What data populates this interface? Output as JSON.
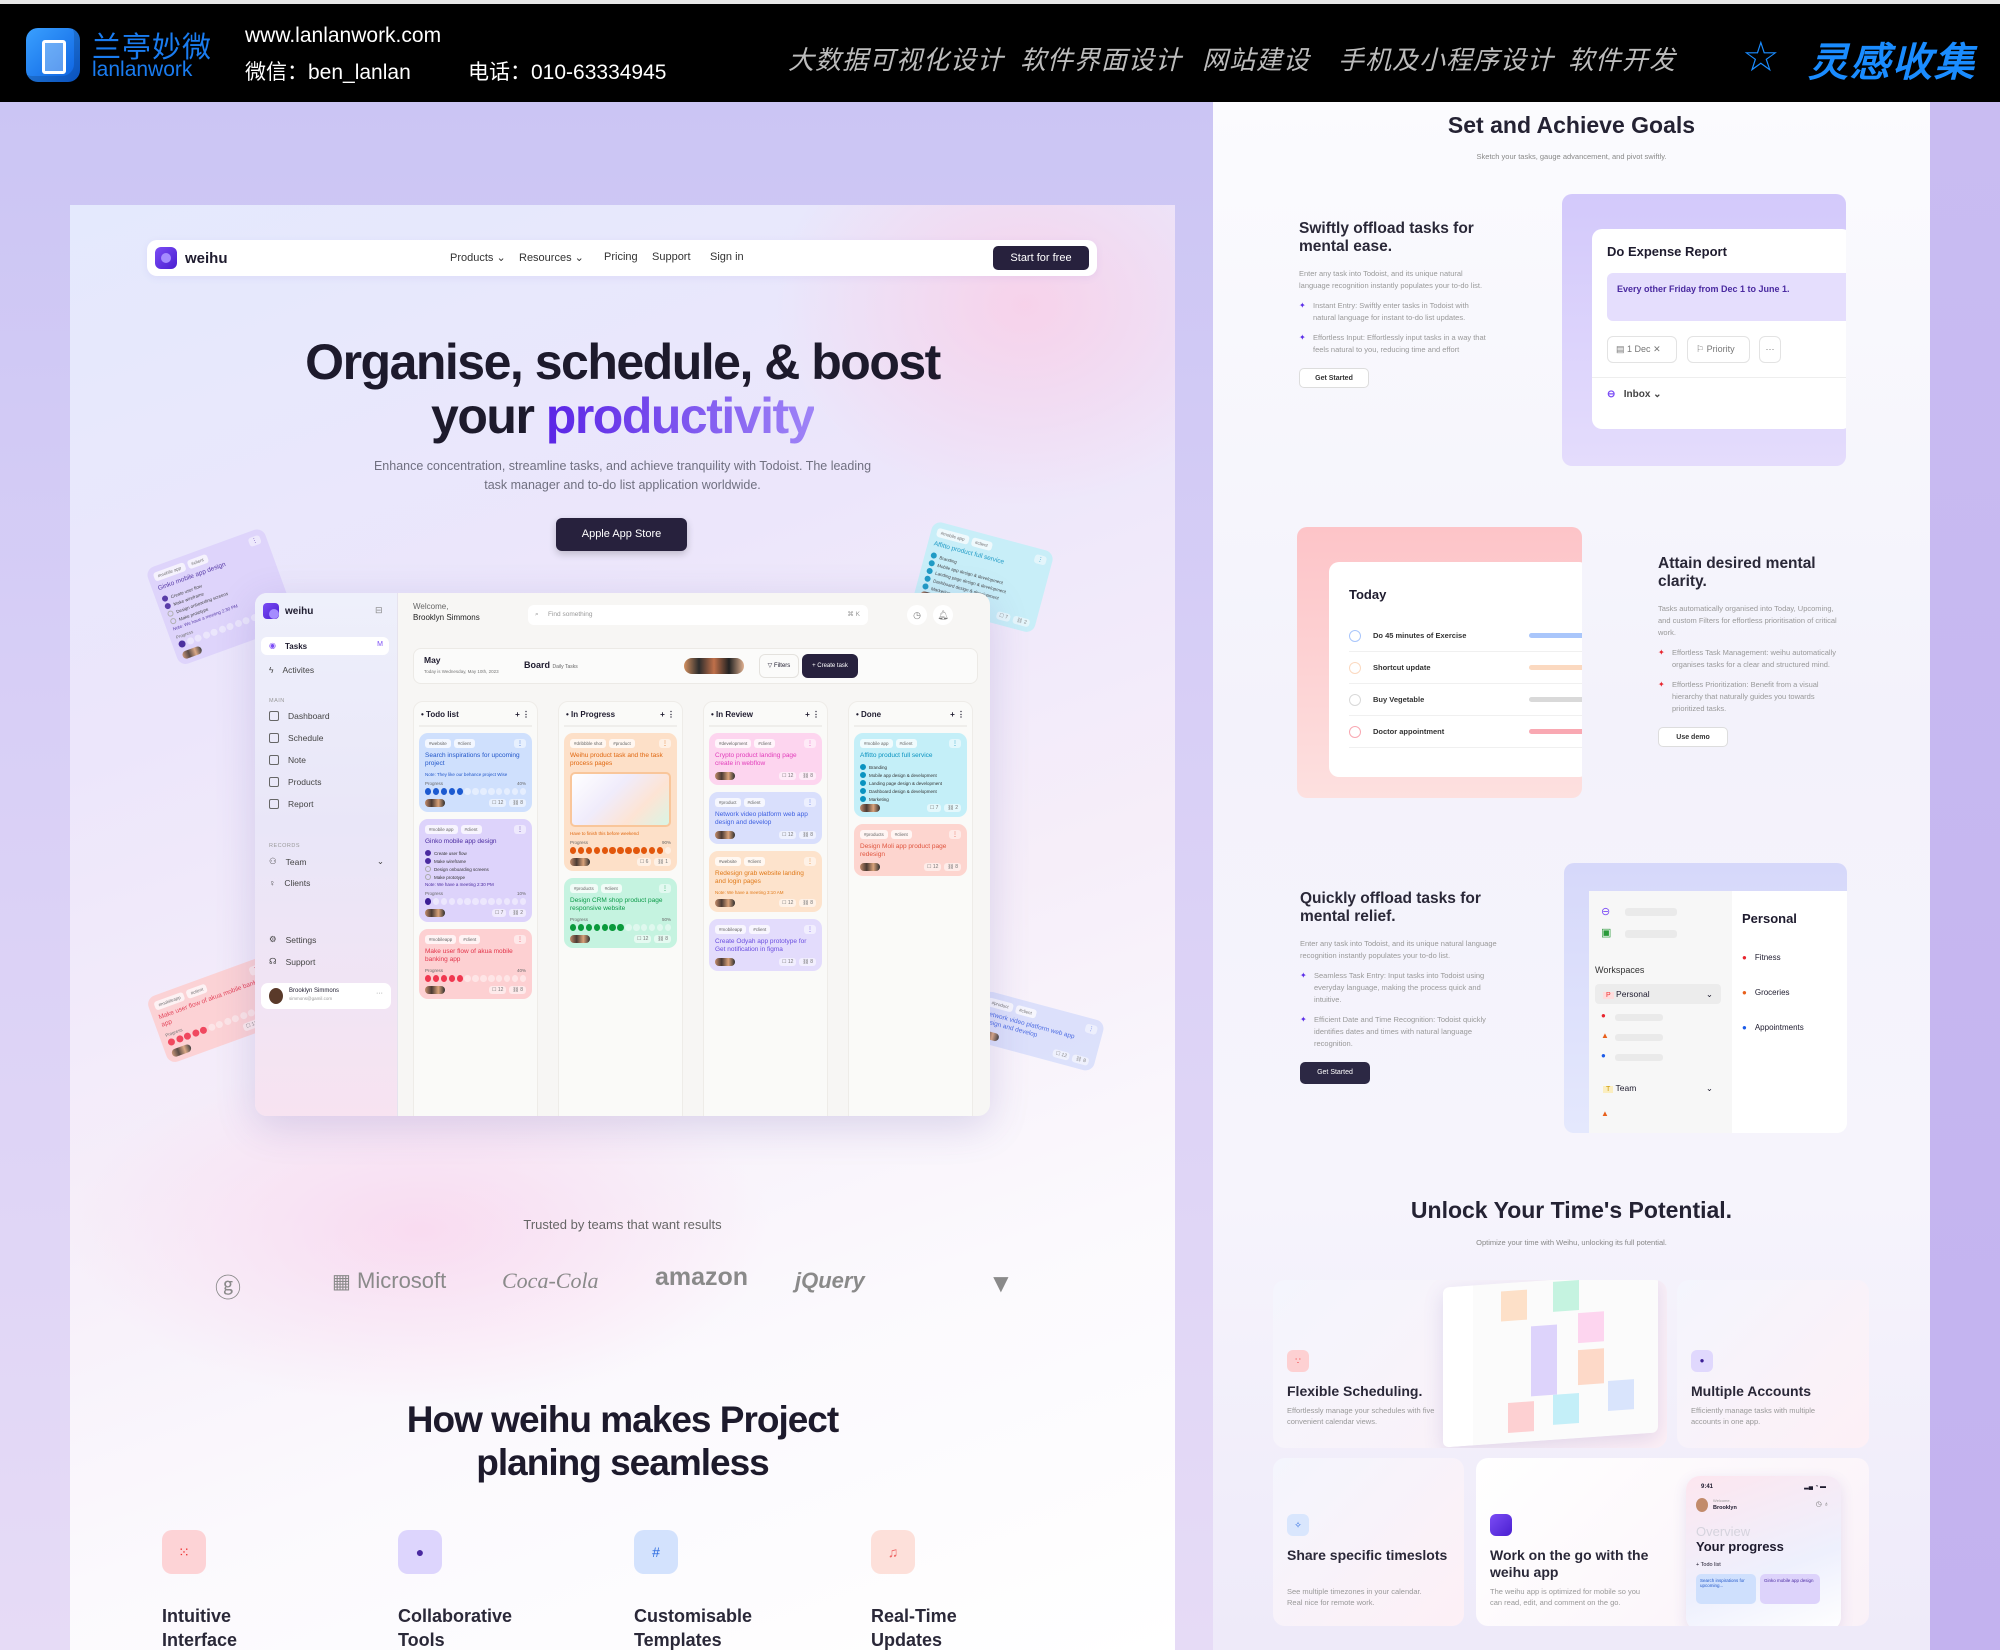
{
  "topbar": {
    "brand_cn": "兰亭妙微",
    "brand_en": "lanlanwork",
    "website": "www.lanlanwork.com",
    "wechat": "微信：ben_lanlan",
    "phone": "电话：010-63334945",
    "nav": [
      "大数据可视化设计",
      "软件界面设计",
      "网站建设",
      "手机及小程序设计",
      "软件开发"
    ],
    "inspiration": "灵感收集",
    "accent": "#1a8cff"
  },
  "site": {
    "logo": "weihu",
    "nav": [
      "Products",
      "Resources",
      "Pricing",
      "Support",
      "Sign in"
    ],
    "start": "Start for free",
    "hero_line1": "Organise, schedule, & boost",
    "hero_line2a": "your ",
    "hero_line2b": "productivity",
    "hero_sub": "Enhance concentration, streamline tasks, and achieve tranquility with Todoist. The leading task manager and to-do list application worldwide.",
    "app_button": "Apple App Store",
    "trusted": "Trusted by teams that want results",
    "logos": [
      "Microsoft",
      "Coca-Cola",
      "amazon",
      "jQuery"
    ],
    "how_line1": "How weihu makes Project",
    "how_line2": "planing seamless",
    "features": [
      {
        "label1": "Intuitive",
        "label2": "Interface",
        "bg": "#fdd3d6",
        "fg": "#e33"
      },
      {
        "label1": "Collaborative",
        "label2": "Tools",
        "bg": "#ddd5fd",
        "fg": "#4a2aa0"
      },
      {
        "label1": "Customisable",
        "label2": "Templates",
        "bg": "#d3e2fd",
        "fg": "#2a6ae0"
      },
      {
        "label1": "Real-Time",
        "label2": "Updates",
        "bg": "#fde0da",
        "fg": "#e66"
      }
    ]
  },
  "app": {
    "logo": "weihu",
    "sidebar": {
      "top": [
        {
          "label": "Tasks",
          "badge": "M"
        },
        {
          "label": "Activites"
        }
      ],
      "main_label": "MAIN",
      "main": [
        "Dashboard",
        "Schedule",
        "Note",
        "Products",
        "Report"
      ],
      "records_label": "RECORDS",
      "records": [
        "Team",
        "Clients"
      ],
      "bottom": [
        "Settings",
        "Support"
      ],
      "user_name": "Brooklyn Simmons",
      "user_email": "simmons@gamil.com"
    },
    "welcome": "Welcome,",
    "user": "Brooklyn Simmons",
    "search_placeholder": "Find something",
    "search_shortcut": "⌘ K",
    "month": "May",
    "today": "Today is Wednesday, May 10th, 2023",
    "view": "Board",
    "view_filter": "Daily Tasks",
    "filters": "Filters",
    "create": "+ Create task",
    "progress_label": "Progress",
    "columns": [
      {
        "title": "Todo list",
        "cards": [
          {
            "tags": [
              "#website",
              "#client"
            ],
            "title": "Search inspirations for upcoming project",
            "note": "Note: They like our behance project Wise",
            "progress": 40,
            "comments": "12",
            "links": "8",
            "bg": "#cfe0fd",
            "fg": "#2257c9",
            "dot": "#1c5ad0"
          },
          {
            "tags": [
              "#mobile app",
              "#client"
            ],
            "title": "Ginko mobile app design",
            "checklist": [
              {
                "t": "Create user flow",
                "done": true
              },
              {
                "t": "Make wireframe",
                "done": true
              },
              {
                "t": "Design onboarding screens",
                "done": false
              },
              {
                "t": "Make prototype",
                "done": false
              }
            ],
            "note": "Note: We have a meeting 2:30 PM",
            "progress": 10,
            "comments": "7",
            "links": "2",
            "bg": "#ddd3fb",
            "fg": "#4a2aa0",
            "dot": "#3b1e96"
          },
          {
            "tags": [
              "#mobileapp",
              "#client"
            ],
            "title": "Make user flow of akua mobile banking app",
            "progress": 40,
            "comments": "12",
            "links": "8",
            "bg": "#fdd0d2",
            "fg": "#e2344a",
            "dot": "#f0374f"
          }
        ]
      },
      {
        "title": "In Progress",
        "cards": [
          {
            "tags": [
              "#dribbble shot",
              "#product"
            ],
            "title": "Weihu product task and the task process pages",
            "image": true,
            "note": "Have to finish this before weekend",
            "progress": 90,
            "comments": "6",
            "links": "1",
            "bg": "#fde0c8",
            "fg": "#e0670f",
            "dot": "#e2570c"
          },
          {
            "tags": [
              "#products",
              "#client"
            ],
            "title": "Design CRM shop product page responsive website",
            "progress": 50,
            "comments": "12",
            "links": "8",
            "bg": "#c5f3e0",
            "fg": "#0a9a48",
            "dot": "#0a9a3c"
          }
        ]
      },
      {
        "title": "In Review",
        "cards": [
          {
            "tags": [
              "#development",
              "#client"
            ],
            "title": "Crypto product landing page create in webflow",
            "comments": "12",
            "links": "8",
            "bg": "#fdd5ef",
            "fg": "#e23dbb"
          },
          {
            "tags": [
              "#product",
              "#client"
            ],
            "title": "Network video platform web app design and develop",
            "comments": "12",
            "links": "8",
            "bg": "#d9dffc",
            "fg": "#3d5fe0"
          },
          {
            "tags": [
              "#website",
              "#client"
            ],
            "title": "Redesign grab website landing and login pages",
            "note": "Note: We have a meeting 3:10 AM",
            "comments": "12",
            "links": "8",
            "bg": "#fde3cc",
            "fg": "#e07a1a"
          },
          {
            "tags": [
              "#mobileapp",
              "#client"
            ],
            "title": "Create Odyah app prototype for Get notification in figma",
            "comments": "12",
            "links": "8",
            "bg": "#e3dcfc",
            "fg": "#6a4ee0"
          }
        ]
      },
      {
        "title": "Done",
        "cards": [
          {
            "tags": [
              "#mobile app",
              "#client"
            ],
            "title": "Affitto product full service",
            "checklist": [
              {
                "t": "Branding",
                "done": true
              },
              {
                "t": "Mobile app design & development",
                "done": true
              },
              {
                "t": "Landing page design & development",
                "done": true
              },
              {
                "t": "Dashboard design & development",
                "done": true
              },
              {
                "t": "Marketing",
                "done": true
              }
            ],
            "comments": "7",
            "links": "2",
            "bg": "#c4eff8",
            "fg": "#0a93c0"
          },
          {
            "tags": [
              "#products",
              "#client"
            ],
            "title": "Design Moli app product page redesign",
            "comments": "12",
            "links": "8",
            "bg": "#fdd5cf",
            "fg": "#e0553f"
          }
        ]
      }
    ]
  },
  "right": {
    "goals_title": "Set and Achieve Goals",
    "goals_sub": "Sketch your tasks, gauge advancement, and pivot swiftly.",
    "s1": {
      "title": "Swiftly offload tasks for mental ease.",
      "body": "Enter any task into Todoist, and its unique natural language recognition instantly populates your to-do list.",
      "bullets": [
        "Instant Entry: Swiftly enter tasks in Todoist with natural language for instant to-do list updates.",
        "Effortless Input: Effortlessly input tasks in a way that feels natural to you, reducing time and effort"
      ],
      "button": "Get Started",
      "card_title": "Do Expense Report",
      "card_highlight": "Every other Friday from Dec 1 to June 1.",
      "date_chip": "1 Dec",
      "priority_chip": "Priority",
      "more": "···",
      "inbox": "Inbox"
    },
    "s2": {
      "title": "Attain desired mental clarity.",
      "body": "Tasks automatically organised into Today, Upcoming, and custom Filters for effortless prioritisation of critical work.",
      "bullets": [
        "Effortless Task Management: weihu automatically organises tasks for a clear and structured mind.",
        "Effortless Prioritization: Benefit from a visual hierarchy that naturally guides you towards prioritized tasks."
      ],
      "button": "Use demo",
      "card_title": "Today",
      "tasks": [
        {
          "label": "Do 45 minutes of Exercise",
          "color": "#a9c6fb"
        },
        {
          "label": "Shortcut update",
          "color": "#fbd9c0"
        },
        {
          "label": "Buy Vegetable",
          "color": "#d9d9d9"
        },
        {
          "label": "Doctor appointment",
          "color": "#f9a8b2"
        }
      ]
    },
    "s3": {
      "title": "Quickly offload tasks for mental relief.",
      "body": "Enter any task into Todoist, and its unique natural language recognition instantly populates your to-do list.",
      "bullets": [
        "Seamless Task Entry: Input tasks into Todoist using everyday language, making the process quick and intuitive.",
        "Efficient Date and Time Recognition: Todoist quickly identifies dates and times with natural language recognition."
      ],
      "button": "Get Started",
      "workspaces": "Workspaces",
      "ws_personal": "Personal",
      "ws_team": "Team",
      "personal_title": "Personal",
      "personal_items": [
        {
          "label": "Fitness",
          "color": "#e8252e"
        },
        {
          "label": "Groceries",
          "color": "#e8601c"
        },
        {
          "label": "Appointments",
          "color": "#1c5be8"
        }
      ]
    },
    "unlock_title": "Unlock Your Time's Potential.",
    "unlock_sub": "Optimize your time with Weihu, unlocking its full potential.",
    "cards": {
      "flex_title": "Flexible Scheduling.",
      "flex_desc": "Effortlessly manage your schedules with five convenient calendar views.",
      "multi_title": "Multiple Accounts",
      "multi_desc": "Efficiently manage tasks with multiple accounts in one app.",
      "share_title": "Share specific timeslots",
      "share_desc": "See multiple timezones in your calendar. Real nice for remote work.",
      "go_title": "Work on the go with the weihu app",
      "go_desc": "The weihu app is optimized for mobile so you can read, edit, and comment on the go.",
      "phone_time": "9:41",
      "phone_welcome": "Welcome,",
      "phone_user": "Brooklyn",
      "phone_overview": "Overview",
      "phone_progress": "Your progress",
      "phone_list": "Todo list",
      "phone_card1": "Search inspirations for upcoming...",
      "phone_card2": "Ginko mobile app design"
    }
  }
}
